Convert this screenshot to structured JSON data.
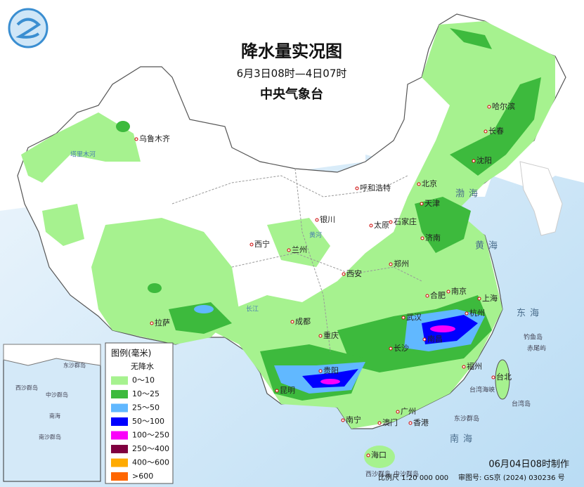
{
  "header": {
    "title": "降水量实况图",
    "subtitle": "6月3日08时—4日07时",
    "agency": "中央气象台"
  },
  "legend": {
    "title": "图例(毫米)",
    "items": [
      {
        "label": "无降水",
        "color": "#ffffff"
      },
      {
        "label": "0～10",
        "color": "#a6f28f"
      },
      {
        "label": "10～25",
        "color": "#3dba3d"
      },
      {
        "label": "25～50",
        "color": "#61b8ff"
      },
      {
        "label": "50～100",
        "color": "#0000ff"
      },
      {
        "label": "100～250",
        "color": "#fa00fa"
      },
      {
        "label": "250～400",
        "color": "#800040"
      },
      {
        "label": "400～600",
        "color": "#ffaa00"
      },
      {
        "label": ">600",
        "color": "#ff6600"
      }
    ]
  },
  "places": {
    "cities": [
      "乌鲁木齐",
      "哈尔滨",
      "长春",
      "沈阳",
      "北京",
      "天津",
      "呼和浩特",
      "石家庄",
      "太原",
      "济南",
      "银川",
      "西宁",
      "兰州",
      "郑州",
      "西安",
      "合肥",
      "南京",
      "上海",
      "杭州",
      "武汉",
      "成都",
      "重庆",
      "拉萨",
      "长沙",
      "南昌",
      "福州",
      "台北",
      "贵阳",
      "昆明",
      "南宁",
      "广州",
      "澳门",
      "香港",
      "海口"
    ],
    "seas": [
      "渤海",
      "黄海",
      "东海",
      "南海"
    ],
    "islands": [
      "钓鱼岛",
      "赤尾屿",
      "台湾岛",
      "台湾海峡",
      "东沙群岛",
      "西沙群岛",
      "中沙群岛"
    ],
    "rivers": [
      "塔里木河",
      "黄河",
      "长江"
    ]
  },
  "inset": {
    "labels": [
      "东沙群岛",
      "西沙群岛",
      "中沙群岛",
      "南沙群岛",
      "南海"
    ]
  },
  "footer": {
    "made": "06月04日08时制作",
    "scale": "比例尺 1:20 000 000",
    "approval": "审图号: GS京 (2024) 030236 号"
  }
}
